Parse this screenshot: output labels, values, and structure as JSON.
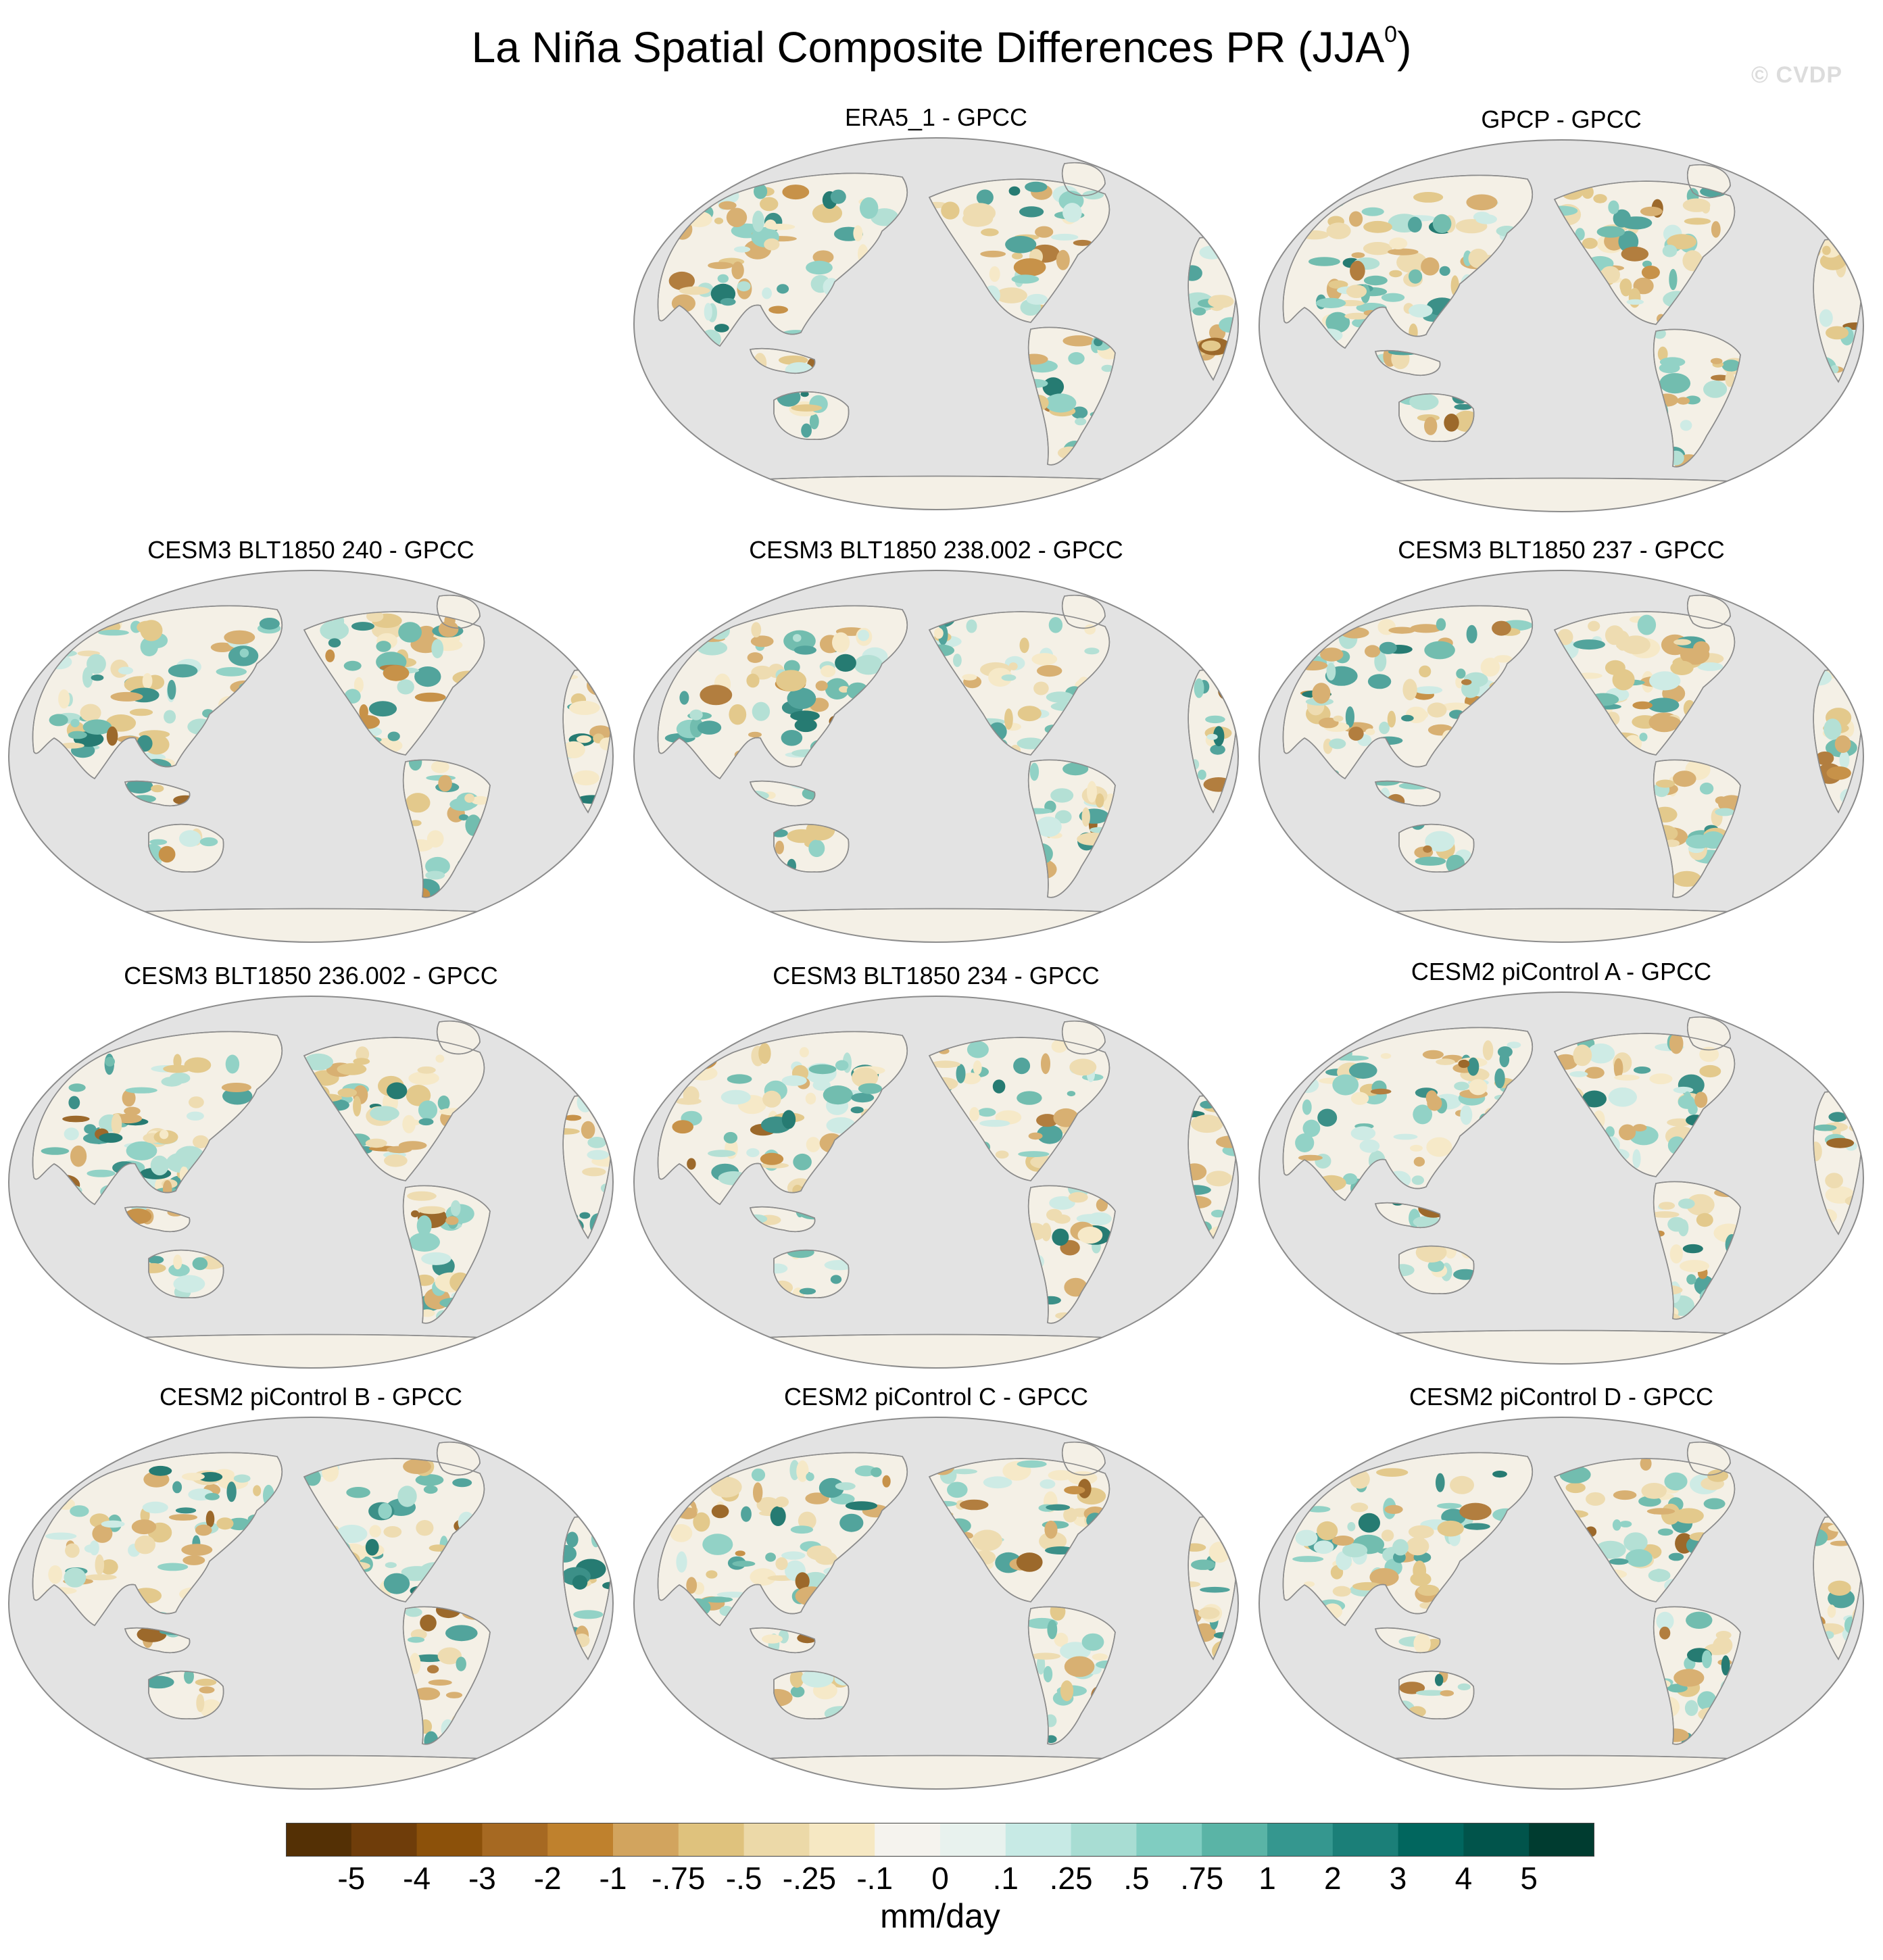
{
  "figure": {
    "title": "La Niña Spatial Composite Differences PR (JJA",
    "title_superscript": "0",
    "title_close": ")",
    "watermark": "© CVDP"
  },
  "panels": [
    {
      "title": "ERA5_1 - GPCC"
    },
    {
      "title": "GPCP - GPCC"
    },
    {
      "title": "CESM3 BLT1850 240 - GPCC"
    },
    {
      "title": "CESM3 BLT1850 238.002 - GPCC"
    },
    {
      "title": "CESM3 BLT1850 237 - GPCC"
    },
    {
      "title": "CESM3 BLT1850 236.002 - GPCC"
    },
    {
      "title": "CESM3 BLT1850 234 - GPCC"
    },
    {
      "title": "CESM2 piControl A - GPCC"
    },
    {
      "title": "CESM2 piControl B - GPCC"
    },
    {
      "title": "CESM2 piControl C - GPCC"
    },
    {
      "title": "CESM2 piControl D - GPCC"
    }
  ],
  "map_colors": {
    "ocean": "#e3e3e3",
    "land_neutral": "#f4f0e6",
    "coastline": "#8c8c8c",
    "frame": "#8c8c8c"
  },
  "colorbar": {
    "units": "mm/day",
    "tick_labels": [
      "-5",
      "-4",
      "-3",
      "-2",
      "-1",
      "-.75",
      "-.5",
      "-.25",
      "-.1",
      "0",
      ".1",
      ".25",
      ".5",
      ".75",
      "1",
      "2",
      "3",
      "4",
      "5"
    ],
    "colors": [
      "#543005",
      "#6f3d0a",
      "#8c510a",
      "#a66922",
      "#bf812d",
      "#d2a45e",
      "#dfc27d",
      "#ecd9a8",
      "#f6e8c3",
      "#f5f3ee",
      "#e8f2ee",
      "#c7eae5",
      "#a8ddd3",
      "#80cdc1",
      "#5ab4a6",
      "#35978f",
      "#1b7f78",
      "#01665e",
      "#01544b",
      "#003c30"
    ]
  }
}
